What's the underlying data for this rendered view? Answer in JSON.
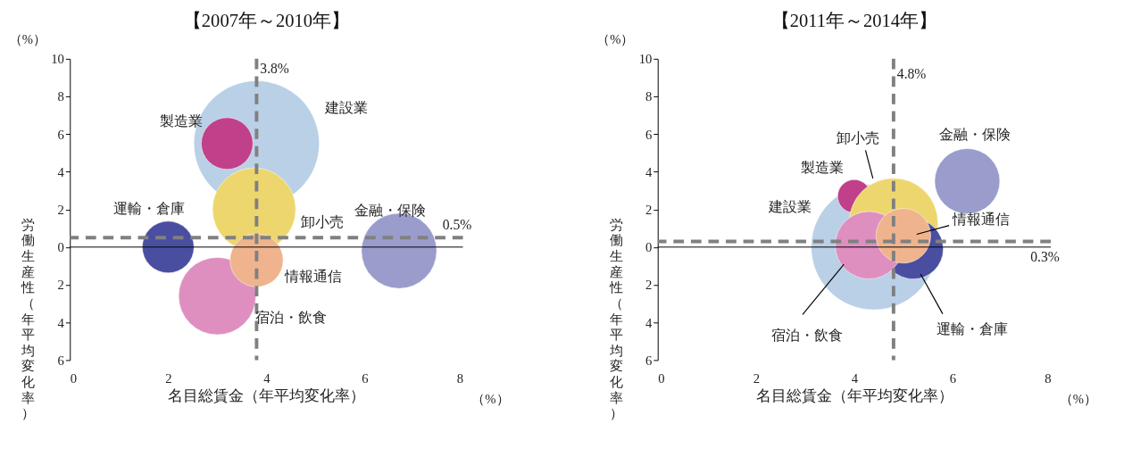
{
  "chart_data": [
    {
      "type": "bubble",
      "title": "【2007年～2010年】",
      "xlabel": "名目総賃金（年平均変化率）",
      "ylabel": "労働生産性（年平均変化率）",
      "xlim": [
        0,
        8
      ],
      "xticks": [
        0,
        2,
        4,
        6,
        8
      ],
      "ylim": [
        -6,
        10
      ],
      "yticks": [
        {
          "value": -6,
          "label": "6"
        },
        {
          "value": -4,
          "label": "4"
        },
        {
          "value": -2,
          "label": "2"
        },
        0,
        2,
        4,
        6,
        8,
        10
      ],
      "series": [
        {
          "name": "建設業",
          "color": "#b9d0e6",
          "x": [
            3.8
          ],
          "values": [
            5.5
          ],
          "sizes": [
            1
          ]
        },
        {
          "name": "製造業",
          "color": "#c0408a",
          "x": [
            3.2
          ],
          "values": [
            5.5
          ],
          "sizes": [
            0.17
          ]
        },
        {
          "name": "卸小売",
          "color": "#eed66e",
          "x": [
            3.75
          ],
          "values": [
            2.0
          ],
          "sizes": [
            0.44
          ]
        },
        {
          "name": "宿泊・飲食",
          "color": "#de8fc0",
          "x": [
            3.0
          ],
          "values": [
            -2.6
          ],
          "sizes": [
            0.38
          ]
        },
        {
          "name": "運輸・倉庫",
          "color": "#4a4ea0",
          "x": [
            2.0
          ],
          "values": [
            0.0
          ],
          "sizes": [
            0.17
          ]
        },
        {
          "name": "情報通信",
          "color": "#efb48e",
          "x": [
            3.8
          ],
          "values": [
            -0.7
          ],
          "sizes": [
            0.18
          ]
        },
        {
          "name": "金融・保険",
          "color": "#9a9ccc",
          "x": [
            6.7
          ],
          "values": [
            -0.2
          ],
          "sizes": [
            0.36
          ]
        }
      ],
      "ref_lines": [
        {
          "axis": "x",
          "value": 3.8,
          "label": "3.8%",
          "color": "#808080",
          "line_style": "dashed"
        },
        {
          "axis": "y",
          "value": 0.5,
          "label": "0.5%",
          "color": "#808080",
          "line_style": "dashed"
        }
      ],
      "annotations": [
        "（%）",
        "（%）"
      ]
    },
    {
      "type": "bubble",
      "title": "【2011年～2014年】",
      "xlabel": "名目総賃金（年平均変化率）",
      "ylabel": "労働生産性（年平均変化率）",
      "xlim": [
        0,
        8
      ],
      "xticks": [
        0,
        2,
        4,
        6,
        8
      ],
      "ylim": [
        -6,
        10
      ],
      "yticks": [
        {
          "value": -6,
          "label": "6"
        },
        {
          "value": -4,
          "label": "4"
        },
        {
          "value": -2,
          "label": "2"
        },
        0,
        2,
        4,
        6,
        8,
        10
      ],
      "series": [
        {
          "name": "建設業",
          "color": "#b9d0e6",
          "x": [
            4.4
          ],
          "values": [
            0.0
          ],
          "sizes": [
            1
          ]
        },
        {
          "name": "製造業",
          "color": "#c0408a",
          "x": [
            4.0
          ],
          "values": [
            2.7
          ],
          "sizes": [
            0.07
          ]
        },
        {
          "name": "卸小売",
          "color": "#eed66e",
          "x": [
            4.8
          ],
          "values": [
            1.3
          ],
          "sizes": [
            0.5
          ]
        },
        {
          "name": "運輸・倉庫",
          "color": "#4a4ea0",
          "x": [
            5.2
          ],
          "values": [
            -0.1
          ],
          "sizes": [
            0.23
          ]
        },
        {
          "name": "宿泊・飲食",
          "color": "#de8fc0",
          "x": [
            4.3
          ],
          "values": [
            0.1
          ],
          "sizes": [
            0.29
          ]
        },
        {
          "name": "情報通信",
          "color": "#efb48e",
          "x": [
            5.0
          ],
          "values": [
            0.6
          ],
          "sizes": [
            0.19
          ]
        },
        {
          "name": "金融・保険",
          "color": "#9a9ccc",
          "x": [
            6.3
          ],
          "values": [
            3.5
          ],
          "sizes": [
            0.27
          ]
        }
      ],
      "ref_lines": [
        {
          "axis": "x",
          "value": 4.8,
          "label": "4.8%",
          "color": "#808080",
          "line_style": "dashed"
        },
        {
          "axis": "y",
          "value": 0.3,
          "label": "0.3%",
          "color": "#808080",
          "line_style": "dashed"
        }
      ],
      "annotations": [
        "（%）",
        "（%）"
      ]
    }
  ]
}
